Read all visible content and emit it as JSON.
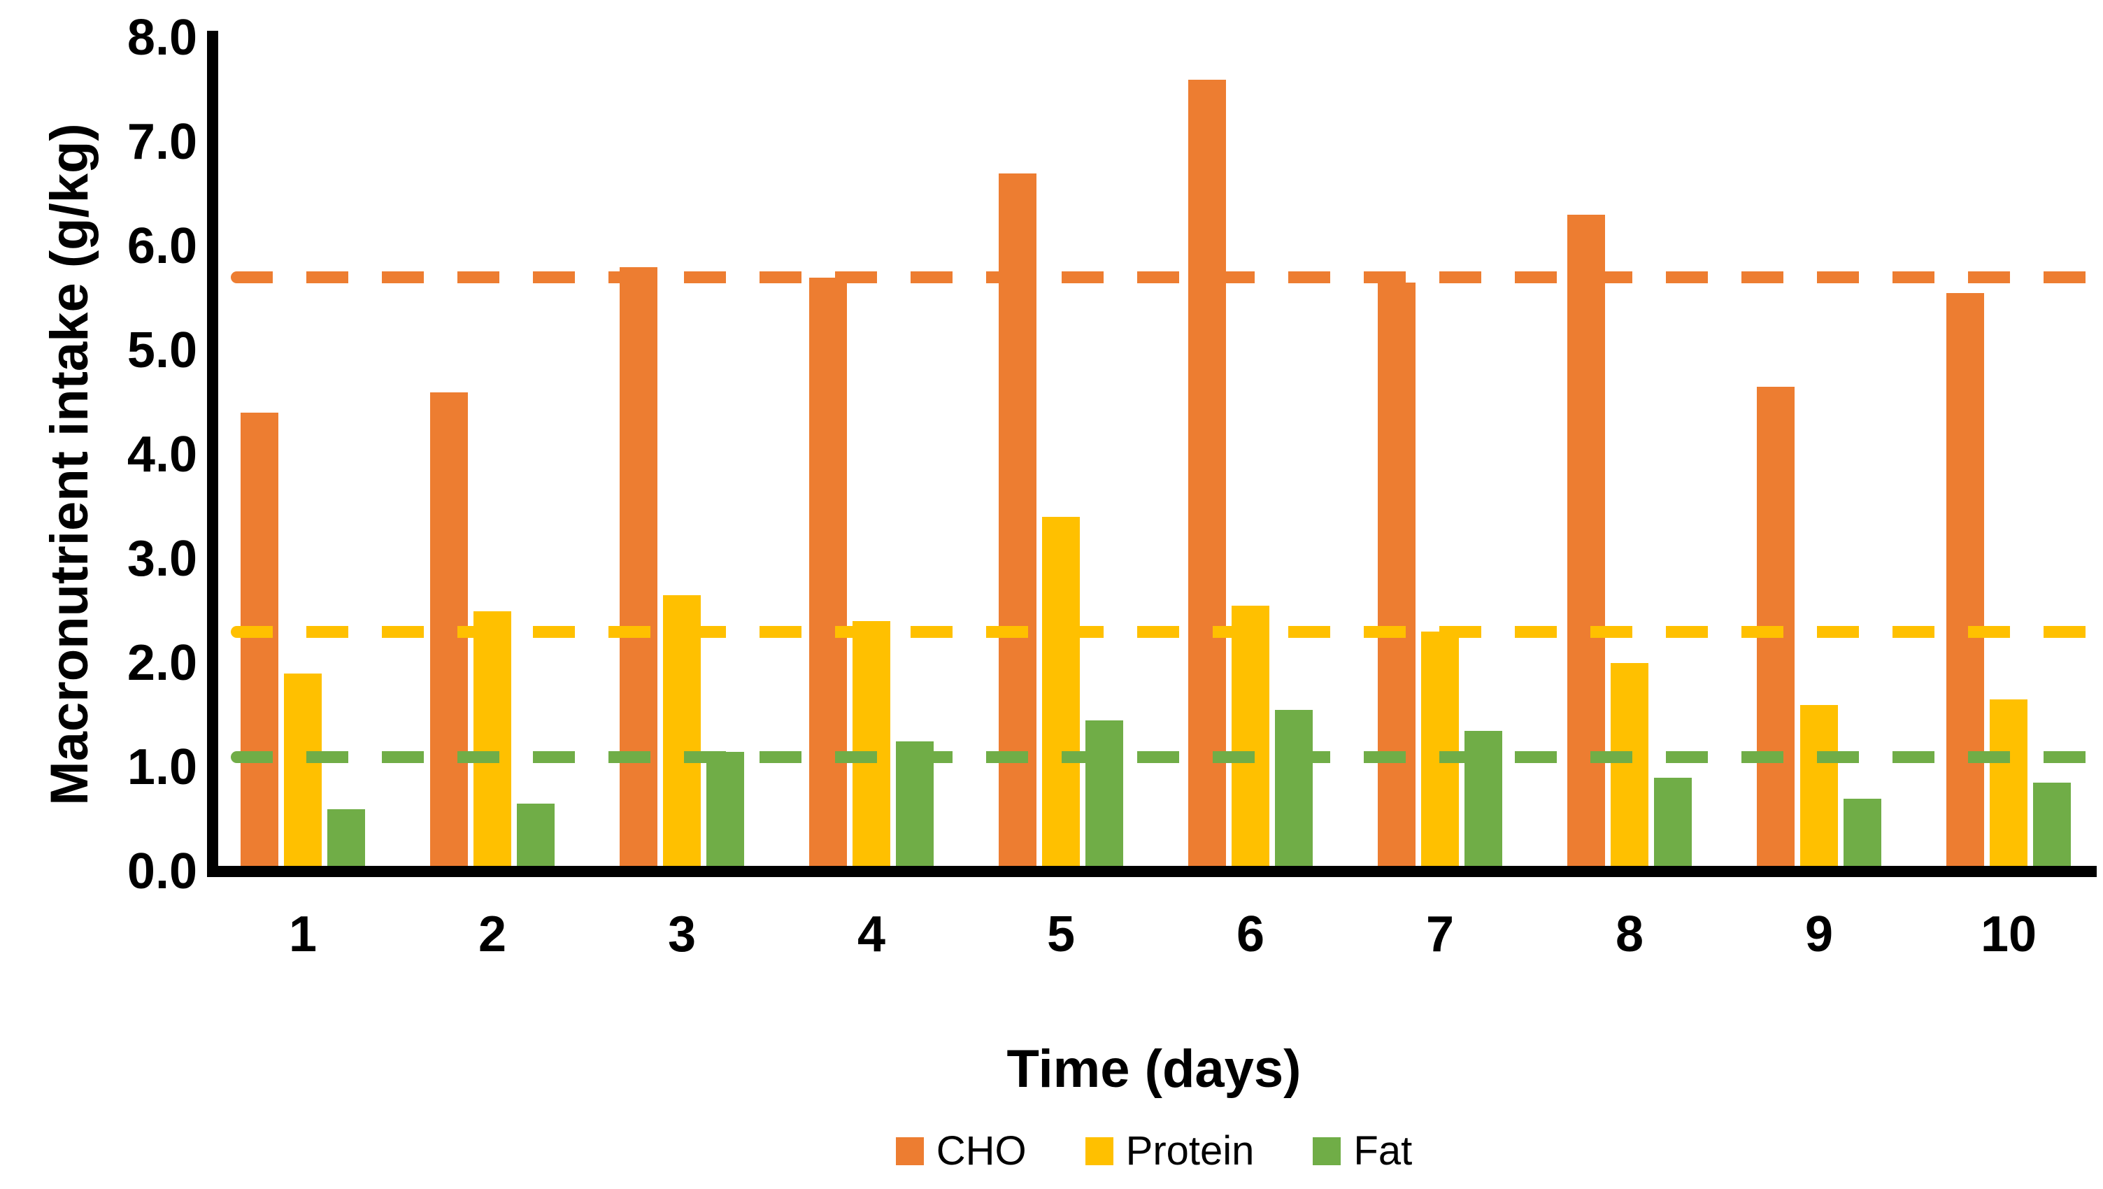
{
  "chart_data": {
    "type": "bar",
    "title": "",
    "xlabel": "Time (days)",
    "ylabel": "Macronutrient intake (g/kg)",
    "categories": [
      "1",
      "2",
      "3",
      "4",
      "5",
      "6",
      "7",
      "8",
      "9",
      "10"
    ],
    "series": [
      {
        "name": "CHO",
        "color": "#ED7D31",
        "values": [
          4.4,
          4.6,
          5.8,
          5.7,
          6.7,
          7.6,
          5.65,
          6.3,
          4.65,
          5.55
        ],
        "mean_dashed_line": 5.7
      },
      {
        "name": "Protein",
        "color": "#FFC000",
        "values": [
          1.9,
          2.5,
          2.65,
          2.4,
          3.4,
          2.55,
          2.3,
          2.0,
          1.6,
          1.65
        ],
        "mean_dashed_line": 2.3
      },
      {
        "name": "Fat",
        "color": "#70AD47",
        "values": [
          0.6,
          0.65,
          1.15,
          1.25,
          1.45,
          1.55,
          1.35,
          0.9,
          0.7,
          0.85
        ],
        "mean_dashed_line": 1.1
      }
    ],
    "ylim": [
      0,
      8
    ],
    "ytick_step": 1.0,
    "ytick_labels": [
      "0.0",
      "1.0",
      "2.0",
      "3.0",
      "4.0",
      "5.0",
      "6.0",
      "7.0",
      "8.0"
    ],
    "grid": false,
    "legend_position": "bottom",
    "axis_color": "#000000",
    "background_color": "#ffffff"
  },
  "legend": {
    "items": [
      {
        "label": "CHO",
        "color": "#ED7D31"
      },
      {
        "label": "Protein",
        "color": "#FFC000"
      },
      {
        "label": "Fat",
        "color": "#70AD47"
      }
    ]
  }
}
